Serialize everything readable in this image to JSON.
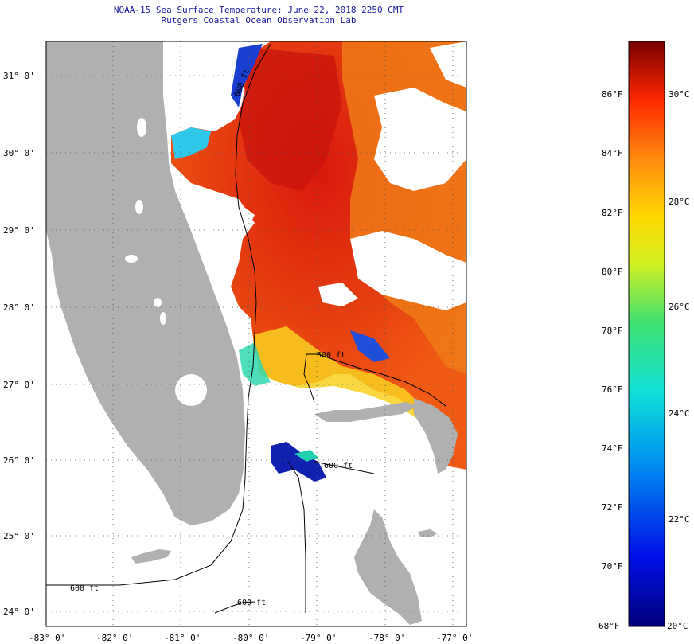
{
  "header": {
    "title": "NOAA-15 Sea Surface Temperature:  June 22, 2018 2250 GMT",
    "subtitle": "Rutgers Coastal Ocean Observation Lab"
  },
  "map": {
    "lat_labels": [
      "31° 0'",
      "30° 0'",
      "29° 0'",
      "28° 0'",
      "27° 0'",
      "26° 0'",
      "25° 0'",
      "24° 0'"
    ],
    "lon_labels": [
      "-83° 0'",
      "-82° 0'",
      "-81° 0'",
      "-80° 0'",
      "-79° 0'",
      "-78° 0'",
      "-77° 0'"
    ],
    "contour_label": "600 ft",
    "colors": {
      "land": "#b0b0b0",
      "cloud": "#ffffff",
      "warm": "#e83a12",
      "hot": "#c81e10",
      "orange": "#f07818",
      "cool": "#18d0b0",
      "cold": "#1830c8"
    }
  },
  "colorbar": {
    "fahrenheit_labels": [
      "86°F",
      "84°F",
      "82°F",
      "80°F",
      "78°F",
      "76°F",
      "74°F",
      "72°F",
      "70°F",
      "68°F"
    ],
    "celsius_labels": [
      "30°C",
      "28°C",
      "26°C",
      "24°C",
      "22°C",
      "20°C"
    ],
    "range_f": [
      68,
      88
    ],
    "range_c": [
      20,
      31.1
    ]
  }
}
